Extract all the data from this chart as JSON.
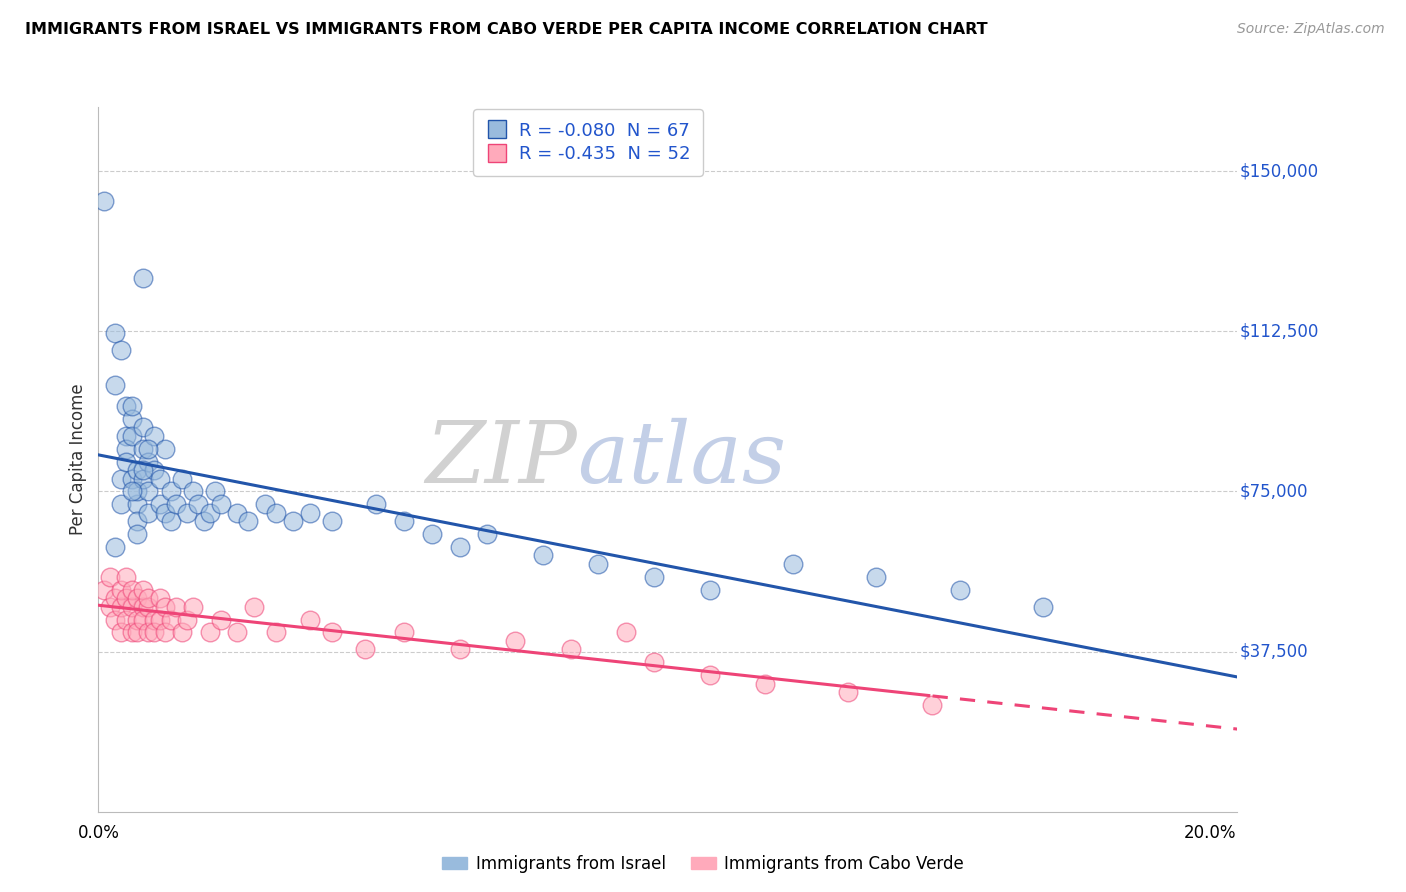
{
  "title": "IMMIGRANTS FROM ISRAEL VS IMMIGRANTS FROM CABO VERDE PER CAPITA INCOME CORRELATION CHART",
  "source": "Source: ZipAtlas.com",
  "ylabel": "Per Capita Income",
  "legend_entry1": "R = -0.080  N = 67",
  "legend_entry2": "R = -0.435  N = 52",
  "legend_label1": "Immigrants from Israel",
  "legend_label2": "Immigrants from Cabo Verde",
  "color_blue": "#99BBDD",
  "color_pink": "#FFAABB",
  "line_blue": "#2255AA",
  "line_pink": "#EE4477",
  "ylim": [
    0,
    165000
  ],
  "xlim": [
    0.0,
    0.205
  ],
  "israel_x": [
    0.001,
    0.008,
    0.003,
    0.003,
    0.004,
    0.005,
    0.005,
    0.006,
    0.004,
    0.004,
    0.005,
    0.005,
    0.006,
    0.006,
    0.006,
    0.007,
    0.007,
    0.007,
    0.007,
    0.008,
    0.008,
    0.008,
    0.009,
    0.009,
    0.009,
    0.01,
    0.01,
    0.011,
    0.011,
    0.012,
    0.012,
    0.013,
    0.013,
    0.014,
    0.015,
    0.016,
    0.017,
    0.018,
    0.019,
    0.02,
    0.021,
    0.022,
    0.025,
    0.027,
    0.03,
    0.032,
    0.035,
    0.038,
    0.042,
    0.05,
    0.055,
    0.06,
    0.065,
    0.07,
    0.08,
    0.09,
    0.1,
    0.11,
    0.125,
    0.14,
    0.155,
    0.17,
    0.007,
    0.003,
    0.009,
    0.006,
    0.008
  ],
  "israel_y": [
    143000,
    125000,
    112000,
    100000,
    108000,
    95000,
    88000,
    92000,
    78000,
    72000,
    85000,
    82000,
    78000,
    88000,
    95000,
    80000,
    72000,
    68000,
    75000,
    90000,
    85000,
    78000,
    82000,
    70000,
    75000,
    88000,
    80000,
    72000,
    78000,
    85000,
    70000,
    75000,
    68000,
    72000,
    78000,
    70000,
    75000,
    72000,
    68000,
    70000,
    75000,
    72000,
    70000,
    68000,
    72000,
    70000,
    68000,
    70000,
    68000,
    72000,
    68000,
    65000,
    62000,
    65000,
    60000,
    58000,
    55000,
    52000,
    58000,
    55000,
    52000,
    48000,
    65000,
    62000,
    85000,
    75000,
    80000
  ],
  "cabo_x": [
    0.001,
    0.002,
    0.002,
    0.003,
    0.003,
    0.004,
    0.004,
    0.004,
    0.005,
    0.005,
    0.005,
    0.006,
    0.006,
    0.006,
    0.007,
    0.007,
    0.007,
    0.008,
    0.008,
    0.008,
    0.009,
    0.009,
    0.009,
    0.01,
    0.01,
    0.011,
    0.011,
    0.012,
    0.012,
    0.013,
    0.014,
    0.015,
    0.016,
    0.017,
    0.02,
    0.022,
    0.025,
    0.028,
    0.032,
    0.038,
    0.042,
    0.048,
    0.055,
    0.065,
    0.075,
    0.085,
    0.095,
    0.1,
    0.11,
    0.12,
    0.135,
    0.15
  ],
  "cabo_y": [
    52000,
    48000,
    55000,
    45000,
    50000,
    48000,
    52000,
    42000,
    50000,
    45000,
    55000,
    42000,
    48000,
    52000,
    45000,
    50000,
    42000,
    48000,
    45000,
    52000,
    42000,
    48000,
    50000,
    45000,
    42000,
    50000,
    45000,
    48000,
    42000,
    45000,
    48000,
    42000,
    45000,
    48000,
    42000,
    45000,
    42000,
    48000,
    42000,
    45000,
    42000,
    38000,
    42000,
    38000,
    40000,
    38000,
    42000,
    35000,
    32000,
    30000,
    28000,
    25000
  ]
}
